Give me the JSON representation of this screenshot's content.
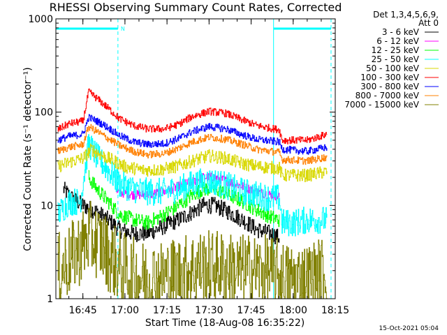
{
  "chart_data": {
    "type": "line",
    "title": "RHESSI Observing Summary Count Rates, Corrected",
    "xlabel": "Start Time (18-Aug-08 16:35:22)",
    "ylabel": "Corrected Count Rate (s⁻¹ detector⁻¹)",
    "y_scale": "log",
    "ylim": [
      1,
      1000
    ],
    "xlim": [
      "16:35:22",
      "18:15:00"
    ],
    "x_ticks": [
      "16:45",
      "17:00",
      "17:15",
      "17:30",
      "17:45",
      "18:00",
      "18:15"
    ],
    "y_ticks": [
      "1",
      "10",
      "100",
      "1000"
    ],
    "footer_timestamp": "15-Oct-2021 05:04",
    "legend_header": [
      "Det 1,3,4,5,6,9,",
      "Att 0"
    ],
    "legend_position": "right",
    "flag_bar_label": "N",
    "night_intervals": [
      [
        "16:35:22",
        "16:57:30"
      ],
      [
        "17:53:00",
        "18:13:30"
      ]
    ],
    "series": [
      {
        "name": "3 - 6 keV",
        "color": "#000000",
        "noise": 0.09,
        "points": [
          [
            "16:38",
            15
          ],
          [
            "16:41",
            12
          ],
          [
            "16:45",
            10
          ],
          [
            "16:50",
            8.5
          ],
          [
            "16:54",
            7
          ],
          [
            "16:58",
            5.5
          ],
          [
            "17:03",
            5
          ],
          [
            "17:08",
            5
          ],
          [
            "17:14",
            6
          ],
          [
            "17:19",
            7
          ],
          [
            "17:24",
            8.5
          ],
          [
            "17:28",
            10
          ],
          [
            "17:32",
            10
          ],
          [
            "17:37",
            8.5
          ],
          [
            "17:42",
            7
          ],
          [
            "17:47",
            5.5
          ],
          [
            "17:52",
            5
          ],
          [
            "17:55",
            4.5
          ]
        ]
      },
      {
        "name": "6 - 12 keV",
        "color": "#ff00ff",
        "noise": 0.05,
        "points": [
          [
            "16:57",
            14
          ],
          [
            "17:03",
            13
          ],
          [
            "17:08",
            13
          ],
          [
            "17:14",
            14
          ],
          [
            "17:19",
            16
          ],
          [
            "17:24",
            18
          ],
          [
            "17:28",
            20
          ],
          [
            "17:32",
            20
          ],
          [
            "17:37",
            18
          ],
          [
            "17:42",
            16
          ],
          [
            "17:47",
            14
          ],
          [
            "17:52",
            13
          ],
          [
            "17:55",
            12.5
          ]
        ]
      },
      {
        "name": "12 - 25 keV",
        "color": "#00ff00",
        "noise": 0.08,
        "points": [
          [
            "16:47",
            20
          ],
          [
            "16:50",
            15
          ],
          [
            "16:54",
            11
          ],
          [
            "16:58",
            8
          ],
          [
            "17:03",
            7
          ],
          [
            "17:08",
            6.5
          ],
          [
            "17:14",
            8
          ],
          [
            "17:19",
            10
          ],
          [
            "17:24",
            13
          ],
          [
            "17:28",
            15
          ],
          [
            "17:32",
            15
          ],
          [
            "17:37",
            13
          ],
          [
            "17:42",
            11
          ],
          [
            "17:47",
            9
          ],
          [
            "17:52",
            7.5
          ],
          [
            "17:55",
            7
          ]
        ]
      },
      {
        "name": "25 - 50 keV",
        "color": "#00ffff",
        "noise": 0.15,
        "points": [
          [
            "16:36",
            8
          ],
          [
            "16:40",
            11
          ],
          [
            "16:44",
            11
          ],
          [
            "16:47",
            46
          ],
          [
            "16:50",
            33
          ],
          [
            "16:54",
            24
          ],
          [
            "16:58",
            17
          ],
          [
            "17:03",
            15
          ],
          [
            "17:08",
            14
          ],
          [
            "17:14",
            14
          ],
          [
            "17:19",
            15
          ],
          [
            "17:24",
            17
          ],
          [
            "17:28",
            18
          ],
          [
            "17:32",
            18
          ],
          [
            "17:37",
            16
          ],
          [
            "17:42",
            14
          ],
          [
            "17:47",
            13
          ],
          [
            "17:52",
            12
          ],
          [
            "17:55",
            12
          ],
          [
            "17:56",
            6.5
          ],
          [
            "18:00",
            6.5
          ],
          [
            "18:05",
            7
          ],
          [
            "18:12",
            7
          ]
        ]
      },
      {
        "name": "50 - 100 keV",
        "color": "#d8d800",
        "noise": 0.07,
        "points": [
          [
            "16:36",
            26
          ],
          [
            "16:40",
            29
          ],
          [
            "16:45",
            32
          ],
          [
            "16:48",
            40
          ],
          [
            "16:52",
            34
          ],
          [
            "16:56",
            30
          ],
          [
            "17:00",
            26
          ],
          [
            "17:06",
            24
          ],
          [
            "17:12",
            24
          ],
          [
            "17:18",
            26
          ],
          [
            "17:24",
            30
          ],
          [
            "17:30",
            34
          ],
          [
            "17:36",
            32
          ],
          [
            "17:42",
            28
          ],
          [
            "17:48",
            26
          ],
          [
            "17:55",
            25
          ],
          [
            "17:56",
            21
          ],
          [
            "18:05",
            21
          ],
          [
            "18:12",
            23
          ]
        ]
      },
      {
        "name": "100 - 300 keV",
        "color": "#ff0000",
        "noise": 0.04,
        "points": [
          [
            "16:36",
            65
          ],
          [
            "16:40",
            75
          ],
          [
            "16:45",
            80
          ],
          [
            "16:47",
            165
          ],
          [
            "16:50",
            140
          ],
          [
            "16:54",
            110
          ],
          [
            "16:58",
            85
          ],
          [
            "17:03",
            72
          ],
          [
            "17:08",
            66
          ],
          [
            "17:14",
            66
          ],
          [
            "17:19",
            74
          ],
          [
            "17:24",
            90
          ],
          [
            "17:30",
            102
          ],
          [
            "17:36",
            97
          ],
          [
            "17:42",
            82
          ],
          [
            "17:47",
            72
          ],
          [
            "17:52",
            67
          ],
          [
            "17:55",
            65
          ],
          [
            "17:56",
            50
          ],
          [
            "18:05",
            50
          ],
          [
            "18:12",
            58
          ]
        ]
      },
      {
        "name": "300 - 800 keV",
        "color": "#0000ff",
        "noise": 0.04,
        "points": [
          [
            "16:36",
            50
          ],
          [
            "16:40",
            55
          ],
          [
            "16:45",
            58
          ],
          [
            "16:47",
            88
          ],
          [
            "16:50",
            80
          ],
          [
            "16:54",
            68
          ],
          [
            "16:58",
            56
          ],
          [
            "17:03",
            48
          ],
          [
            "17:08",
            45
          ],
          [
            "17:14",
            46
          ],
          [
            "17:19",
            52
          ],
          [
            "17:24",
            62
          ],
          [
            "17:30",
            70
          ],
          [
            "17:36",
            66
          ],
          [
            "17:42",
            57
          ],
          [
            "17:47",
            51
          ],
          [
            "17:52",
            49
          ],
          [
            "17:55",
            48
          ],
          [
            "17:56",
            40
          ],
          [
            "18:05",
            38
          ],
          [
            "18:12",
            42
          ]
        ]
      },
      {
        "name": "800 - 7000 keV",
        "color": "#ff8000",
        "noise": 0.04,
        "points": [
          [
            "16:36",
            38
          ],
          [
            "16:40",
            42
          ],
          [
            "16:45",
            45
          ],
          [
            "16:47",
            70
          ],
          [
            "16:50",
            62
          ],
          [
            "16:54",
            52
          ],
          [
            "16:58",
            44
          ],
          [
            "17:03",
            38
          ],
          [
            "17:08",
            35
          ],
          [
            "17:14",
            36
          ],
          [
            "17:19",
            41
          ],
          [
            "17:24",
            48
          ],
          [
            "17:30",
            54
          ],
          [
            "17:36",
            51
          ],
          [
            "17:42",
            45
          ],
          [
            "17:47",
            40
          ],
          [
            "17:52",
            38
          ],
          [
            "17:55",
            37
          ],
          [
            "17:56",
            31
          ],
          [
            "18:05",
            30
          ],
          [
            "18:12",
            33
          ]
        ]
      },
      {
        "name": "7000 - 15000 keV",
        "color": "#808000",
        "noise": 0.4,
        "points": [
          [
            "16:36",
            2
          ],
          [
            "16:40",
            2.5
          ],
          [
            "16:44",
            3.5
          ],
          [
            "16:47",
            4.5
          ],
          [
            "16:51",
            4
          ],
          [
            "16:54",
            3
          ],
          [
            "16:58",
            2.2
          ],
          [
            "17:05",
            1.7
          ],
          [
            "17:12",
            1.7
          ],
          [
            "17:19",
            1.9
          ],
          [
            "17:26",
            2.2
          ],
          [
            "17:33",
            2.2
          ],
          [
            "17:40",
            2
          ],
          [
            "17:47",
            2
          ],
          [
            "17:53",
            1.9
          ],
          [
            "17:58",
            1.6
          ],
          [
            "18:05",
            1.6
          ],
          [
            "18:12",
            2
          ]
        ]
      }
    ]
  }
}
